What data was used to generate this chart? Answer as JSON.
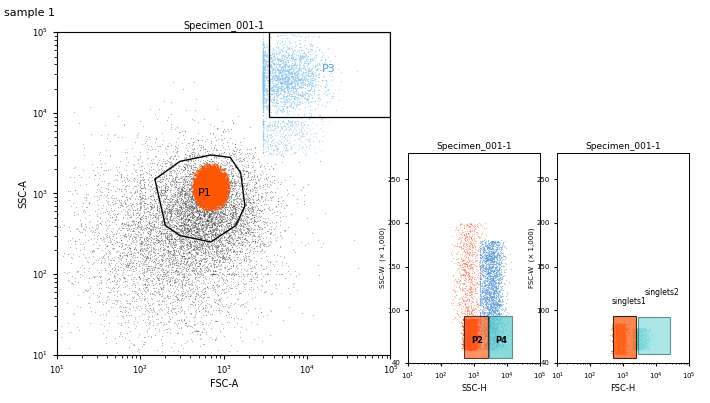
{
  "title": "sample 1",
  "panel1_title": "Specimen_001-1",
  "panel2_title": "Specimen_001-1",
  "panel3_title": "Specimen_001-1",
  "background_color": "#ffffff",
  "seed": 42
}
